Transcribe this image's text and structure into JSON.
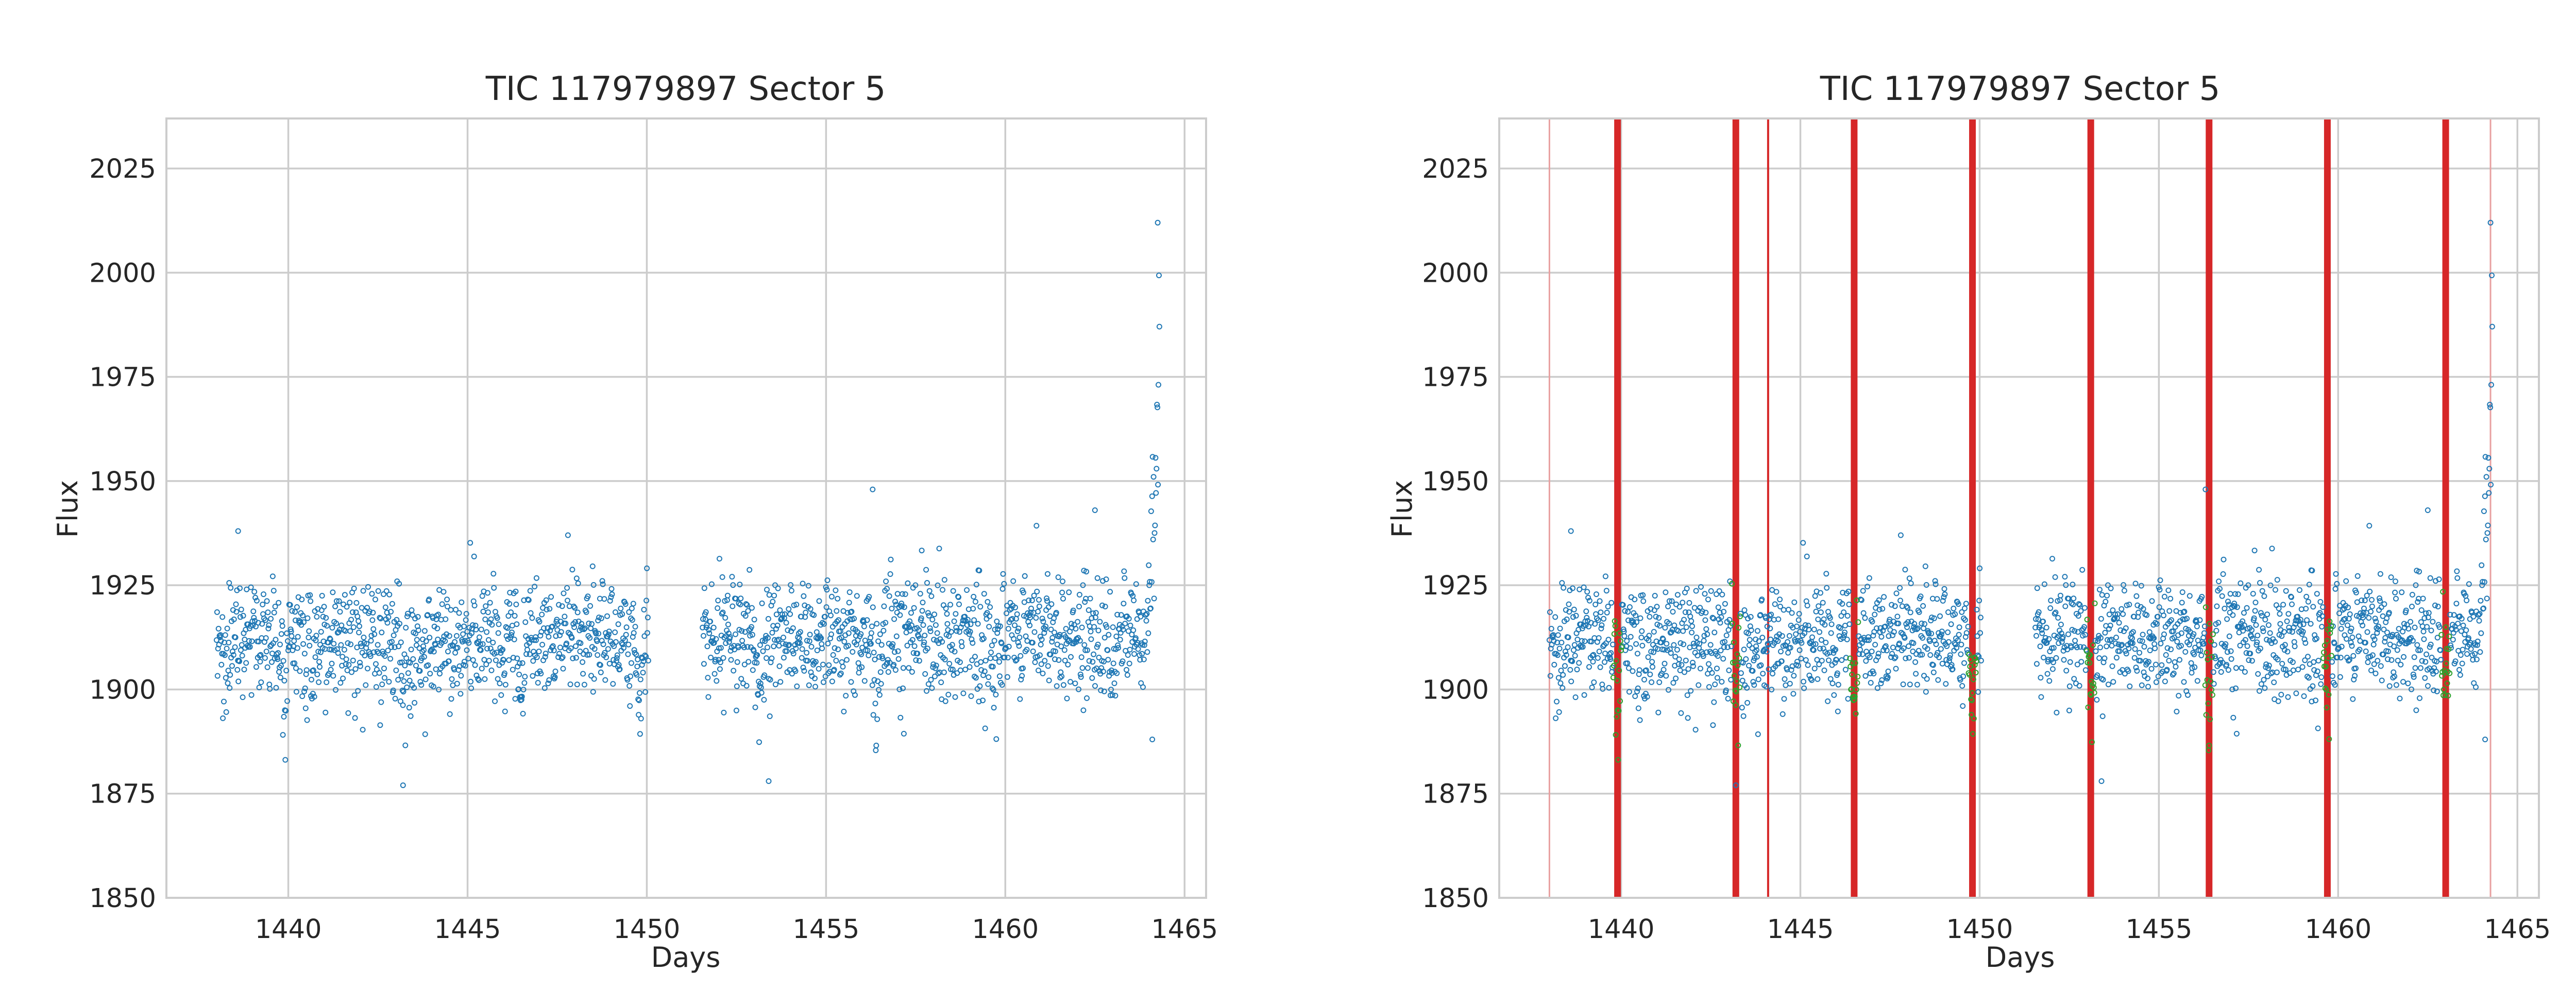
{
  "chart_data": [
    {
      "type": "scatter",
      "title": "TIC 117979897 Sector 5",
      "xlabel": "Days",
      "ylabel": "Flux",
      "xlim": [
        1436.6,
        1465.6
      ],
      "ylim": [
        1850,
        2037
      ],
      "grid": true,
      "xticks": [
        1440,
        1445,
        1450,
        1455,
        1460,
        1465
      ],
      "yticks": [
        1850,
        1875,
        1900,
        1925,
        1950,
        1975,
        2000,
        2025
      ],
      "colors": {
        "points": "#1f77b4",
        "grid": "#cccccc",
        "frame": "#cccccc"
      },
      "series": [
        {
          "baseline_flux": 1911,
          "scatter_std": 7,
          "data_gap": [
            1450.05,
            1451.55
          ],
          "x_range": [
            1438.0,
            1464.3
          ],
          "dips": [
            {
              "x": 1439.9,
              "depth": 22
            },
            {
              "x": 1443.2,
              "depth": 20
            },
            {
              "x": 1446.5,
              "depth": 20
            },
            {
              "x": 1449.8,
              "depth": 16
            },
            {
              "x": 1453.1,
              "depth": 22
            },
            {
              "x": 1456.4,
              "depth": 20
            },
            {
              "x": 1459.7,
              "depth": 20
            },
            {
              "x": 1463.0,
              "depth": 18
            }
          ],
          "end_rise": {
            "start": 1463.7,
            "end": 1464.3,
            "peak_flux": 1995
          },
          "outliers": [
            {
              "x": 1438.6,
              "y": 1938
            },
            {
              "x": 1443.2,
              "y": 1877
            },
            {
              "x": 1453.4,
              "y": 1878
            },
            {
              "x": 1456.3,
              "y": 1948
            },
            {
              "x": 1462.5,
              "y": 1943
            },
            {
              "x": 1464.1,
              "y": 1888
            },
            {
              "x": 1464.25,
              "y": 2012
            }
          ]
        }
      ]
    },
    {
      "type": "scatter",
      "title": "TIC 117979897 Sector 5",
      "xlabel": "Days",
      "ylabel": "Flux",
      "xlim": [
        1436.6,
        1465.6
      ],
      "ylim": [
        1850,
        2037
      ],
      "grid": true,
      "xticks": [
        1440,
        1445,
        1450,
        1455,
        1460,
        1465
      ],
      "yticks": [
        1850,
        1875,
        1900,
        1925,
        1950,
        1975,
        2000,
        2025
      ],
      "colors": {
        "points": "#1f77b4",
        "transit_points": "#2ca02c",
        "transit_lines": "#d62728",
        "faint_lines": "#e8a0a0",
        "grid": "#cccccc",
        "frame": "#cccccc"
      },
      "transit_lines": [
        1439.9,
        1443.2,
        1446.5,
        1449.8,
        1453.1,
        1456.4,
        1459.7,
        1463.0
      ],
      "thin_lines": [
        1444.1
      ],
      "faint_lines": [
        1438.0,
        1464.25
      ],
      "series": [
        {
          "baseline_flux": 1911,
          "scatter_std": 7,
          "data_gap": [
            1450.05,
            1451.55
          ],
          "x_range": [
            1438.0,
            1464.3
          ],
          "dips": [
            {
              "x": 1439.9,
              "depth": 22
            },
            {
              "x": 1443.2,
              "depth": 20
            },
            {
              "x": 1446.5,
              "depth": 20
            },
            {
              "x": 1449.8,
              "depth": 16
            },
            {
              "x": 1453.1,
              "depth": 22
            },
            {
              "x": 1456.4,
              "depth": 20
            },
            {
              "x": 1459.7,
              "depth": 20
            },
            {
              "x": 1463.0,
              "depth": 18
            }
          ],
          "end_rise": {
            "start": 1463.7,
            "end": 1464.3,
            "peak_flux": 1995
          },
          "outliers": [
            {
              "x": 1438.6,
              "y": 1938
            },
            {
              "x": 1443.2,
              "y": 1877
            },
            {
              "x": 1453.4,
              "y": 1878
            },
            {
              "x": 1456.3,
              "y": 1948
            },
            {
              "x": 1462.5,
              "y": 1943
            },
            {
              "x": 1464.1,
              "y": 1888
            },
            {
              "x": 1464.25,
              "y": 2012
            }
          ]
        }
      ]
    }
  ]
}
